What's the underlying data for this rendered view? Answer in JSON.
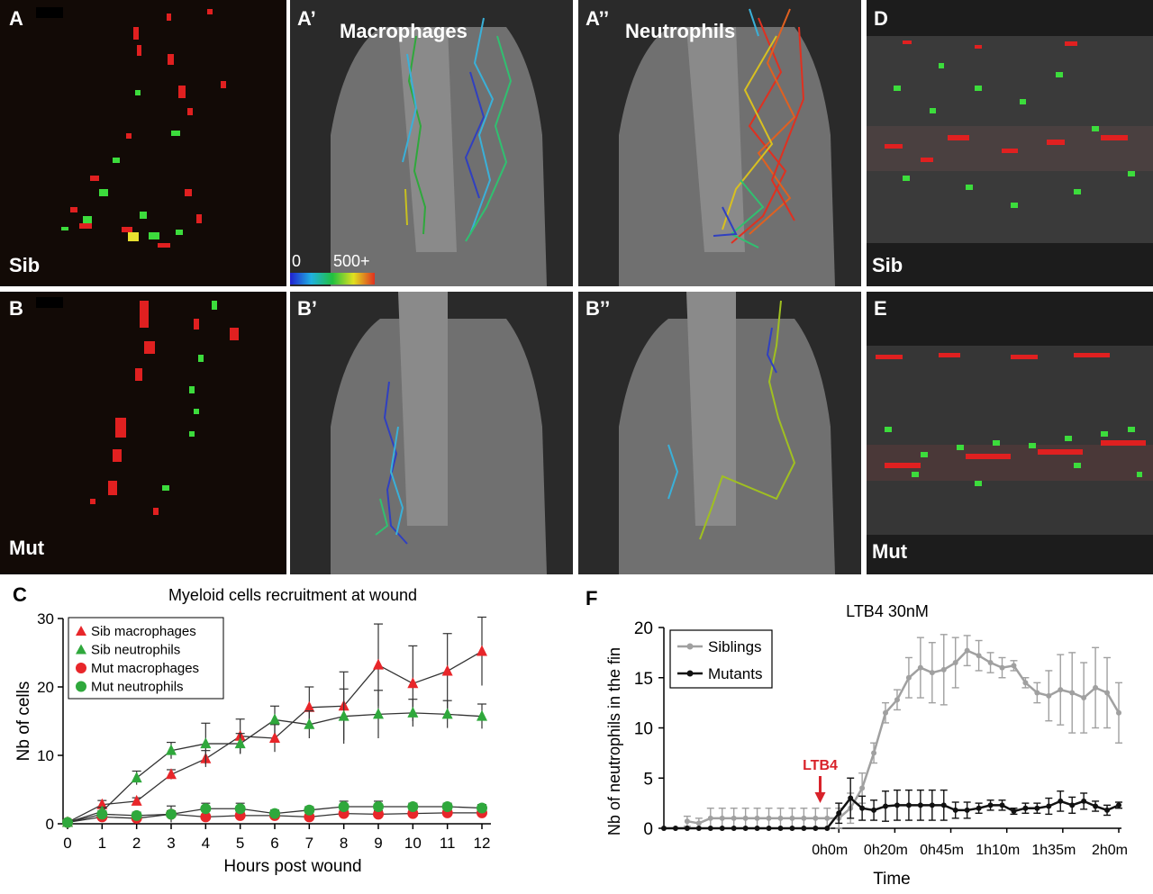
{
  "panels": {
    "A": {
      "label": "A",
      "tag": "Sib"
    },
    "A1": {
      "label": "A’",
      "title": "Macrophages"
    },
    "A2": {
      "label": "A’’",
      "title": "Neutrophils"
    },
    "B": {
      "label": "B",
      "tag": "Mut"
    },
    "B1": {
      "label": "B’"
    },
    "B2": {
      "label": "B’’"
    },
    "D": {
      "label": "D",
      "tag": "Sib"
    },
    "E": {
      "label": "E",
      "tag": "Mut"
    },
    "colorbar": {
      "min": "0",
      "max": "500+"
    }
  },
  "labels": {
    "C": "C",
    "F": "F"
  },
  "chart_data": [
    {
      "type": "line",
      "title": "Myeloid cells recruitment at wound",
      "xlabel": "Hours post wound",
      "ylabel": "Nb of cells",
      "x": [
        0,
        1,
        2,
        3,
        4,
        5,
        6,
        7,
        8,
        9,
        10,
        11,
        12
      ],
      "ylim": [
        0,
        30
      ],
      "yticks": [
        0,
        10,
        20,
        30
      ],
      "legend_position": "top-left",
      "series": [
        {
          "name": "Sib macrophages",
          "color": "#e8262a",
          "marker": "triangle",
          "values": [
            0.2,
            2.8,
            3.3,
            7.2,
            9.5,
            12.8,
            12.5,
            17.0,
            17.2,
            23.2,
            20.5,
            22.3,
            25.2
          ],
          "err": [
            0.3,
            0.6,
            0.5,
            0.7,
            1.2,
            2.5,
            2.0,
            3.0,
            5.0,
            6.0,
            5.5,
            5.5,
            5.0
          ]
        },
        {
          "name": "Sib neutrophils",
          "color": "#2fa83c",
          "marker": "triangle",
          "values": [
            0.2,
            1.8,
            6.7,
            10.7,
            11.7,
            11.7,
            15.2,
            14.5,
            15.7,
            16.0,
            16.2,
            16.0,
            15.7
          ],
          "err": [
            0.3,
            0.6,
            1.0,
            1.2,
            3.0,
            1.5,
            2.0,
            2.0,
            4.0,
            3.5,
            2.0,
            2.0,
            1.8
          ]
        },
        {
          "name": "Mut macrophages",
          "color": "#e8262a",
          "marker": "circle",
          "values": [
            0.2,
            1.0,
            0.8,
            1.4,
            1.0,
            1.2,
            1.2,
            1.0,
            1.5,
            1.4,
            1.5,
            1.6,
            1.6
          ],
          "err": [
            0.2,
            0.4,
            0.4,
            0.5,
            0.4,
            0.5,
            0.5,
            0.4,
            0.5,
            0.5,
            0.5,
            0.5,
            0.5
          ]
        },
        {
          "name": "Mut neutrophils",
          "color": "#2fa83c",
          "marker": "circle",
          "values": [
            0.2,
            1.4,
            1.2,
            1.4,
            2.2,
            2.2,
            1.5,
            2.0,
            2.5,
            2.5,
            2.5,
            2.5,
            2.3
          ],
          "err": [
            0.3,
            0.5,
            0.5,
            1.2,
            0.8,
            0.8,
            0.5,
            0.5,
            0.8,
            0.8,
            0.5,
            0.5,
            0.5
          ]
        }
      ]
    },
    {
      "type": "line",
      "title": "LTB4 30nM",
      "xlabel": "Time",
      "ylabel": "Nb of neutrophils in the fin",
      "ylim": [
        0,
        20
      ],
      "yticks": [
        0,
        5,
        10,
        15,
        20
      ],
      "xtick_labels": [
        "0h0m",
        "0h20m",
        "0h45m",
        "1h10m",
        "1h35m",
        "2h0m"
      ],
      "annotation": {
        "text": "LTB4",
        "at_point": 13
      },
      "legend_position": "top-left",
      "series": [
        {
          "name": "Siblings",
          "color": "#a0a0a0",
          "values": [
            0.7,
            0.5,
            1,
            1,
            1,
            1,
            1,
            1,
            1,
            1,
            1,
            1,
            1,
            1,
            2.0,
            4.0,
            7.5,
            11.5,
            12.8,
            15.0,
            16.0,
            15.5,
            15.8,
            16.5,
            17.7,
            17.2,
            16.5,
            16.0,
            16.2,
            14.5,
            13.5,
            13.2,
            13.8,
            13.5,
            13.0,
            14.0,
            13.5,
            11.5
          ],
          "err": [
            0.5,
            0.5,
            1,
            1,
            1,
            1,
            1,
            1,
            1,
            1,
            1,
            1,
            1,
            1,
            1.5,
            1.5,
            1.0,
            1.0,
            1.0,
            2.0,
            3.0,
            3.0,
            3.5,
            2.5,
            1.5,
            1.5,
            1.0,
            1.0,
            0.5,
            0.5,
            1.0,
            2.5,
            3.5,
            4.0,
            3.5,
            4.0,
            3.5,
            3.0
          ]
        },
        {
          "name": "Mutants",
          "color": "#111111",
          "values": [
            0,
            0,
            0,
            0,
            0,
            0,
            0,
            0,
            0,
            0,
            0,
            0,
            0,
            0,
            0,
            1.5,
            3.0,
            2.0,
            1.8,
            2.2,
            2.3,
            2.3,
            2.3,
            2.3,
            2.3,
            1.8,
            1.8,
            2.0,
            2.3,
            2.3,
            1.7,
            2.0,
            2.0,
            2.2,
            2.7,
            2.3,
            2.7,
            2.2,
            1.8,
            2.3
          ],
          "err": [
            0,
            0,
            0,
            0,
            0,
            0,
            0,
            0,
            0,
            0,
            0,
            0,
            0,
            0,
            0,
            1.0,
            2.0,
            1.2,
            1.0,
            1.5,
            1.5,
            1.5,
            1.5,
            1.5,
            1.5,
            0.8,
            0.8,
            0.5,
            0.5,
            0.5,
            0.3,
            0.5,
            0.5,
            0.8,
            1.0,
            0.8,
            0.8,
            0.5,
            0.5,
            0.3
          ]
        }
      ]
    }
  ],
  "colors": {
    "mac": "#e8262a",
    "neu": "#3cdc3c",
    "sib_line": "#a0a0a0",
    "mut_line": "#111111",
    "ltb4": "#d8222a"
  }
}
